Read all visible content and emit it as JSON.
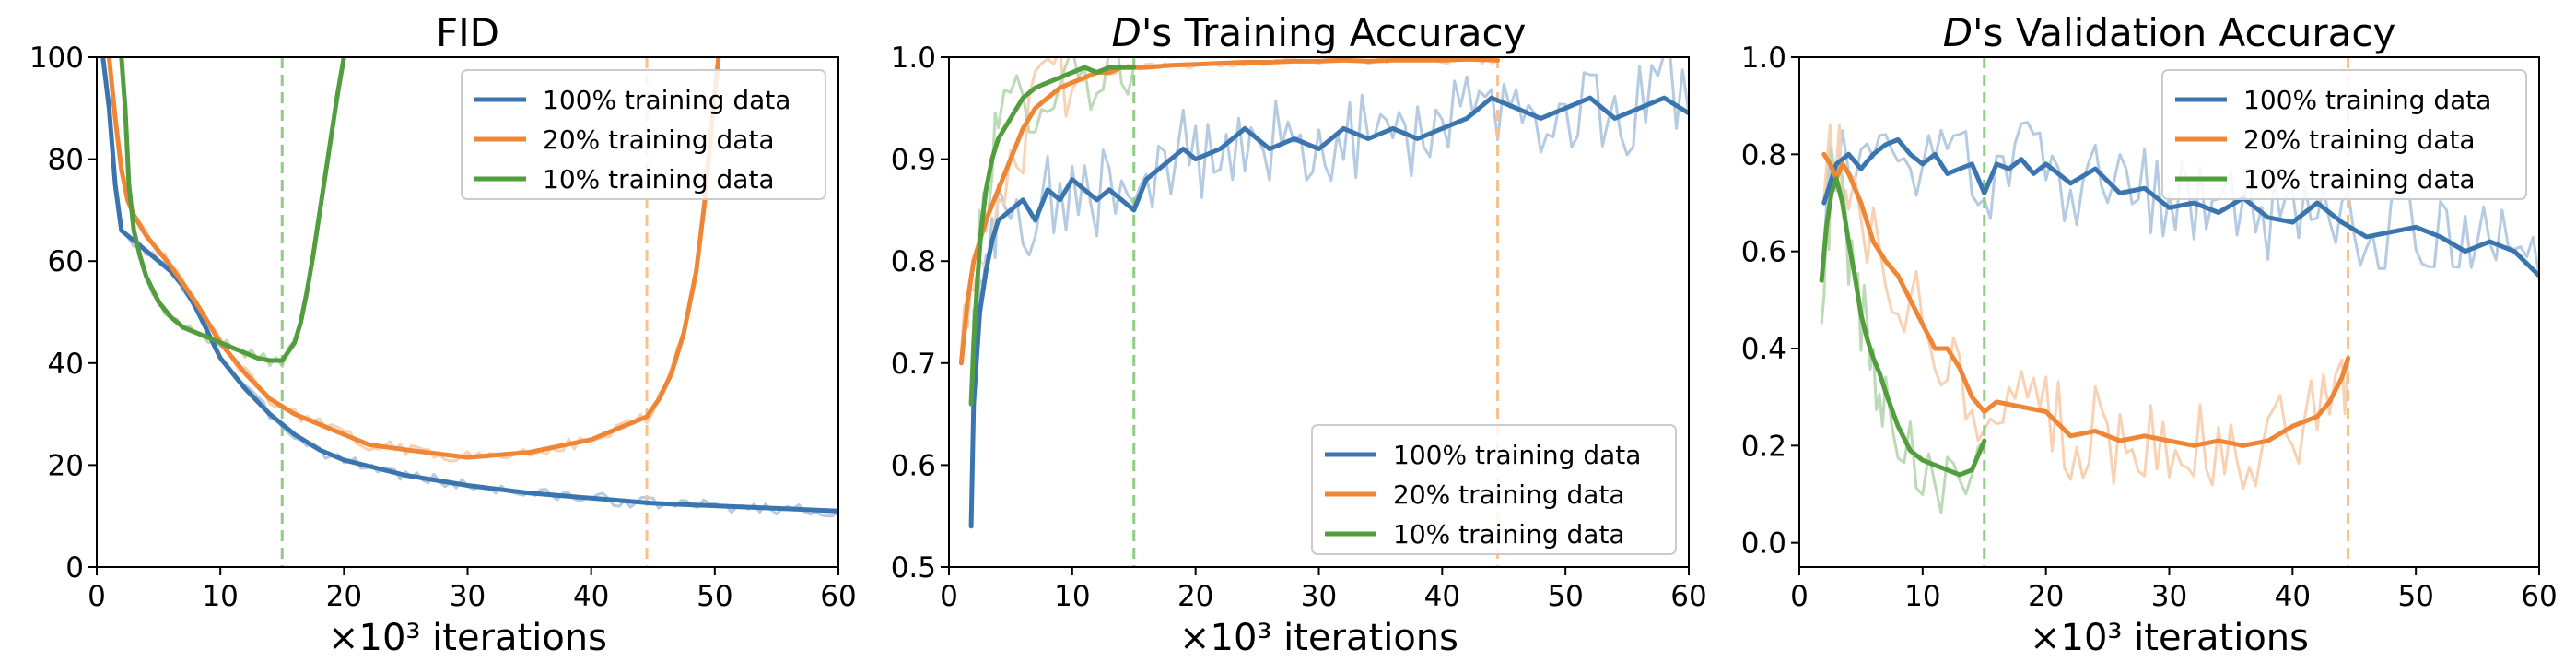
{
  "chart_data": [
    {
      "type": "line",
      "title": "FID",
      "title_prefix": "",
      "xlabel": "×10³ iterations",
      "xlim": [
        0,
        60
      ],
      "ylim": [
        0,
        100
      ],
      "xticks": [
        0,
        10,
        20,
        30,
        40,
        50,
        60
      ],
      "yticks": [
        0,
        20,
        40,
        60,
        80,
        100
      ],
      "legend": "top-right",
      "vlines": [
        {
          "x": 15,
          "color": "#8fcd85"
        },
        {
          "x": 44.5,
          "color": "#f8c18e"
        }
      ],
      "series": [
        {
          "name": "100% training data",
          "color": "#3a75af",
          "x": [
            0.5,
            1,
            1.5,
            2,
            3,
            4,
            5,
            6,
            7,
            8,
            9,
            10,
            12,
            14,
            16,
            18,
            20,
            25,
            30,
            35,
            40,
            45,
            50,
            55,
            60
          ],
          "values": [
            100,
            90,
            75,
            66,
            64,
            62,
            60,
            58,
            55,
            51,
            46,
            41,
            35,
            30,
            26,
            23,
            21,
            18,
            16,
            14.5,
            13.5,
            12.5,
            12,
            11.5,
            11
          ]
        },
        {
          "name": "20% training data",
          "color": "#ef8636",
          "x": [
            1,
            1.5,
            2,
            2.5,
            3,
            4,
            6,
            8,
            10,
            12,
            14,
            16,
            18,
            20,
            22,
            25,
            30,
            35,
            40,
            42,
            43.5,
            44.5,
            45.5,
            46.5,
            47.5,
            48.5,
            49.2,
            49.8,
            50.3
          ],
          "values": [
            100,
            88,
            78,
            72,
            69,
            65,
            59,
            52,
            44,
            38,
            33,
            30,
            28,
            26,
            24,
            23,
            21.5,
            22.5,
            25,
            27,
            28.5,
            29.5,
            33,
            38,
            46,
            58,
            72,
            88,
            100
          ]
        },
        {
          "name": "10% training data",
          "color": "#529e3e",
          "x": [
            2,
            2.3,
            2.6,
            3,
            3.5,
            4,
            5,
            6,
            7,
            8,
            9,
            10,
            11,
            12,
            13,
            14,
            15,
            16,
            16.5,
            17,
            17.5,
            18,
            18.5,
            19,
            19.5,
            20
          ],
          "values": [
            100,
            90,
            75,
            66,
            61,
            57,
            52,
            49,
            47,
            46,
            45,
            44,
            43,
            42,
            41,
            40.5,
            40.5,
            44,
            48,
            54,
            61,
            69,
            77,
            85,
            93,
            100
          ]
        }
      ]
    },
    {
      "type": "line",
      "title": "'s Training Accuracy",
      "title_prefix": "D",
      "xlabel": "×10³ iterations",
      "xlim": [
        0,
        60
      ],
      "ylim": [
        0.5,
        1.0
      ],
      "xticks": [
        0,
        10,
        20,
        30,
        40,
        50,
        60
      ],
      "yticks": [
        0.5,
        0.6,
        0.7,
        0.8,
        0.9,
        1.0
      ],
      "legend": "bottom-right",
      "vlines": [
        {
          "x": 15,
          "color": "#8fcd85"
        },
        {
          "x": 44.5,
          "color": "#f8c18e"
        }
      ],
      "series": [
        {
          "name": "100% training data",
          "color": "#3a75af",
          "x": [
            1.8,
            2,
            2.5,
            3,
            3.5,
            4,
            5,
            6,
            7,
            8,
            9,
            10,
            11,
            12,
            13,
            14,
            15,
            16,
            17,
            18,
            19,
            20,
            22,
            24,
            26,
            28,
            30,
            32,
            34,
            36,
            38,
            40,
            42,
            44,
            46,
            48,
            50,
            52,
            54,
            56,
            58,
            60
          ],
          "values": [
            0.54,
            0.66,
            0.75,
            0.79,
            0.82,
            0.84,
            0.85,
            0.86,
            0.84,
            0.87,
            0.86,
            0.88,
            0.87,
            0.86,
            0.87,
            0.86,
            0.85,
            0.88,
            0.89,
            0.9,
            0.91,
            0.9,
            0.91,
            0.93,
            0.91,
            0.92,
            0.91,
            0.93,
            0.92,
            0.93,
            0.92,
            0.93,
            0.94,
            0.96,
            0.95,
            0.94,
            0.95,
            0.96,
            0.94,
            0.95,
            0.96,
            0.945
          ]
        },
        {
          "name": "20% training data",
          "color": "#ef8636",
          "x": [
            1,
            1.5,
            2,
            3,
            4,
            5,
            6,
            7,
            8,
            9,
            10,
            11,
            12,
            13,
            14,
            15,
            16,
            18,
            20,
            22,
            24,
            26,
            28,
            30,
            32,
            34,
            36,
            38,
            40,
            42,
            44.5
          ],
          "values": [
            0.7,
            0.76,
            0.8,
            0.84,
            0.87,
            0.9,
            0.93,
            0.95,
            0.96,
            0.97,
            0.975,
            0.98,
            0.985,
            0.985,
            0.99,
            0.99,
            0.99,
            0.992,
            0.993,
            0.994,
            0.995,
            0.995,
            0.996,
            0.996,
            0.997,
            0.996,
            0.997,
            0.997,
            0.997,
            0.998,
            0.997
          ]
        },
        {
          "name": "10% training data",
          "color": "#529e3e",
          "x": [
            1.8,
            2,
            2.3,
            2.6,
            3,
            3.5,
            4,
            5,
            6,
            7,
            8,
            9,
            10,
            11,
            12,
            13,
            14,
            15
          ],
          "values": [
            0.66,
            0.72,
            0.78,
            0.83,
            0.87,
            0.9,
            0.92,
            0.94,
            0.96,
            0.97,
            0.975,
            0.98,
            0.985,
            0.99,
            0.985,
            0.99,
            0.99,
            0.99
          ]
        }
      ]
    },
    {
      "type": "line",
      "title": "'s Validation Accuracy",
      "title_prefix": "D",
      "xlabel": "×10³ iterations",
      "xlim": [
        0,
        60
      ],
      "ylim": [
        -0.05,
        1.0
      ],
      "xticks": [
        0,
        10,
        20,
        30,
        40,
        50,
        60
      ],
      "yticks": [
        0.0,
        0.2,
        0.4,
        0.6,
        0.8,
        1.0
      ],
      "legend": "top-right",
      "vlines": [
        {
          "x": 15,
          "color": "#8fcd85"
        },
        {
          "x": 44.5,
          "color": "#f8c18e"
        }
      ],
      "series": [
        {
          "name": "100% training data",
          "color": "#3a75af",
          "x": [
            2,
            3,
            4,
            5,
            6,
            7,
            8,
            9,
            10,
            11,
            12,
            13,
            14,
            15,
            16,
            17,
            18,
            19,
            20,
            22,
            24,
            26,
            28,
            30,
            32,
            34,
            36,
            38,
            40,
            42,
            44,
            46,
            48,
            50,
            52,
            54,
            56,
            58,
            60
          ],
          "values": [
            0.7,
            0.78,
            0.8,
            0.77,
            0.8,
            0.82,
            0.83,
            0.8,
            0.78,
            0.8,
            0.76,
            0.77,
            0.78,
            0.72,
            0.78,
            0.77,
            0.79,
            0.76,
            0.78,
            0.74,
            0.77,
            0.72,
            0.73,
            0.69,
            0.7,
            0.68,
            0.71,
            0.67,
            0.66,
            0.7,
            0.66,
            0.63,
            0.64,
            0.65,
            0.63,
            0.6,
            0.62,
            0.6,
            0.55
          ]
        },
        {
          "name": "20% training data",
          "color": "#ef8636",
          "x": [
            2,
            2.5,
            3,
            3.5,
            4,
            5,
            6,
            7,
            8,
            9,
            10,
            11,
            12,
            13,
            14,
            15,
            16,
            18,
            20,
            22,
            24,
            26,
            28,
            30,
            32,
            34,
            36,
            38,
            40,
            42,
            43,
            44,
            44.5
          ],
          "values": [
            0.8,
            0.78,
            0.75,
            0.78,
            0.76,
            0.7,
            0.62,
            0.58,
            0.55,
            0.5,
            0.45,
            0.4,
            0.4,
            0.36,
            0.3,
            0.27,
            0.29,
            0.28,
            0.27,
            0.22,
            0.23,
            0.21,
            0.22,
            0.21,
            0.2,
            0.21,
            0.2,
            0.21,
            0.24,
            0.26,
            0.29,
            0.34,
            0.38
          ]
        },
        {
          "name": "10% training data",
          "color": "#529e3e",
          "x": [
            1.8,
            2.2,
            2.6,
            3,
            3.5,
            4,
            4.5,
            5,
            5.5,
            6,
            6.5,
            7,
            8,
            9,
            10,
            11,
            12,
            13,
            14,
            15
          ],
          "values": [
            0.54,
            0.65,
            0.72,
            0.75,
            0.7,
            0.62,
            0.55,
            0.47,
            0.42,
            0.38,
            0.35,
            0.31,
            0.24,
            0.19,
            0.17,
            0.16,
            0.15,
            0.14,
            0.15,
            0.21
          ]
        }
      ]
    }
  ]
}
